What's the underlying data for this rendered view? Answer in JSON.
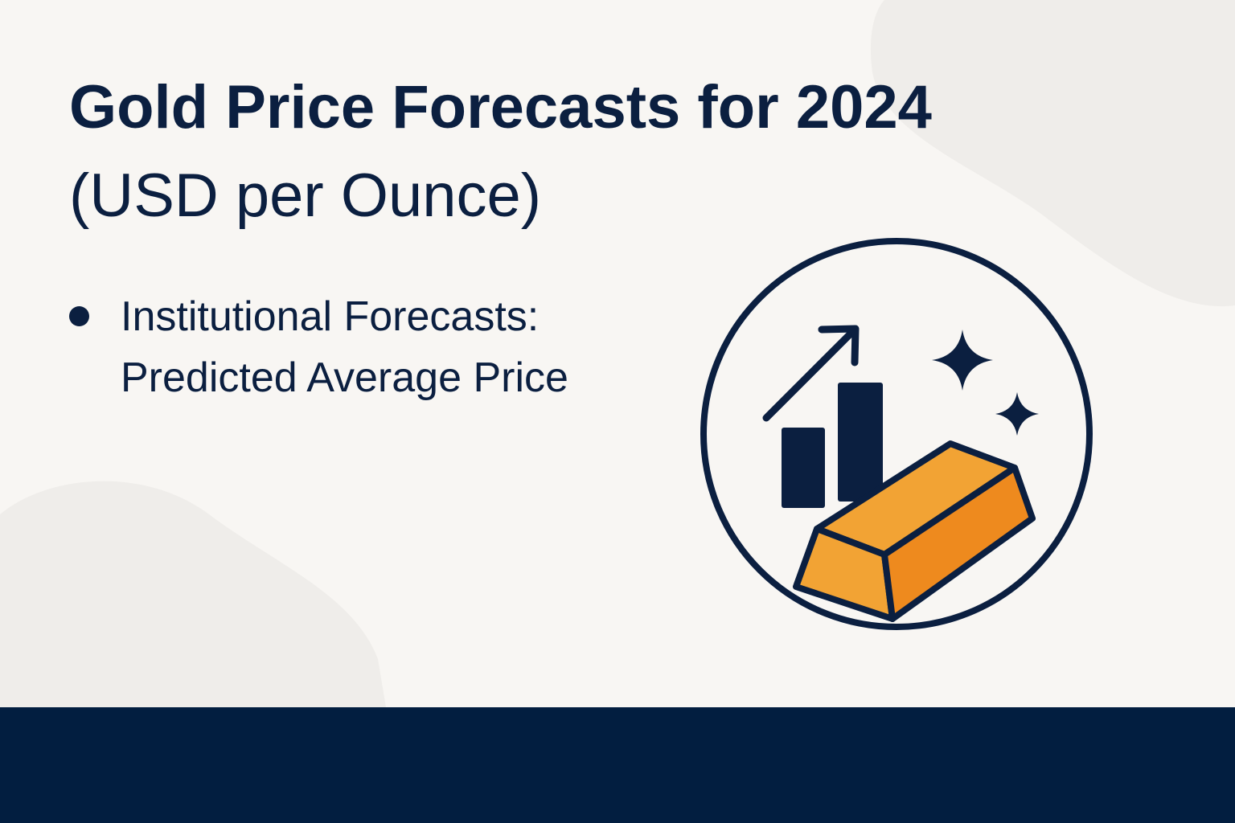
{
  "slide": {
    "title": "Gold Price Forecasts for 2024",
    "subtitle": "(USD per Ounce)",
    "bullets": [
      "Institutional Forecasts: Predicted Average Price"
    ]
  }
}
